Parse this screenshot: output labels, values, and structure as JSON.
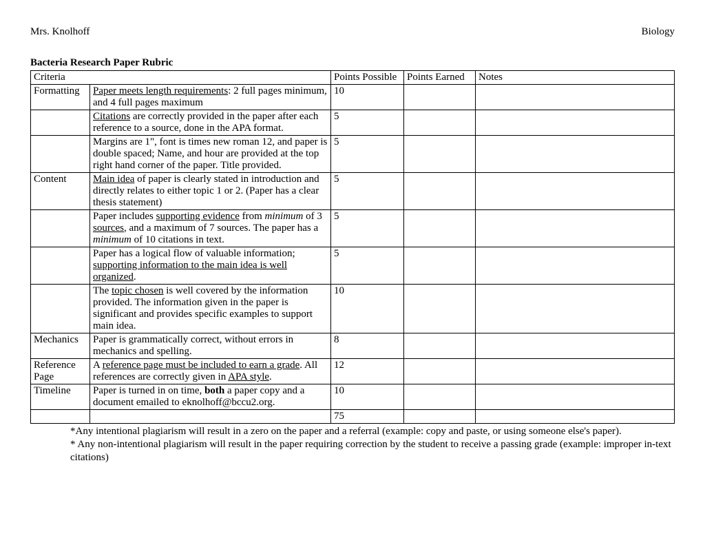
{
  "header": {
    "left": "Mrs. Knolhoff",
    "right": "Biology"
  },
  "title": "Bacteria Research Paper Rubric",
  "columns": {
    "criteria": "Criteria",
    "points_possible": "Points Possible",
    "points_earned": "Points Earned",
    "notes": "Notes"
  },
  "rows": [
    {
      "criteria": "Formatting",
      "desc_html": "<span class='u'>Paper meets length requirements</span>: 2 full pages minimum, and 4 full pages maximum",
      "points": "10"
    },
    {
      "criteria": "",
      "desc_html": "<span class='u'>Citations</span> are correctly provided in the paper after each reference to a source, done in the APA format.",
      "points": "5"
    },
    {
      "criteria": "",
      "desc_html": "Margins are 1\", font is times new roman 12, and paper is double spaced; Name, and hour are provided at the top right hand corner of the paper. Title provided.",
      "points": "5"
    },
    {
      "criteria": "Content",
      "desc_html": "<span class='u'>Main idea</span> of paper is clearly stated in introduction and directly relates to either topic 1 or 2.  (Paper has a clear thesis statement)",
      "points": "5"
    },
    {
      "criteria": "",
      "desc_html": "Paper includes <span class='u'>supporting evidence</span> from <span class='i'>minimum</span> of 3 <span class='u'>sources</span>, and a maximum of 7 sources.  The paper has a <span class='i'>minimum</span> of 10 citations in text.",
      "points": "5"
    },
    {
      "criteria": "",
      "desc_html": "Paper has a logical flow of valuable information; <span class='u'>supporting information to the main idea is well organized</span>.",
      "points": "5"
    },
    {
      "criteria": "",
      "desc_html": "The <span class='u'>topic chosen</span> is well covered by the information provided.  The information given in the paper is significant and provides specific examples to support main idea.",
      "points": "10"
    },
    {
      "criteria": "Mechanics",
      "desc_html": "Paper is grammatically correct, without errors in mechanics and spelling.",
      "points": "8"
    },
    {
      "criteria": "Reference Page",
      "desc_html": "A <span class='u'>reference page must be included to earn a grade</span>. All references are correctly given in <span class='u'>APA style</span>.",
      "points": "12"
    },
    {
      "criteria": "Timeline",
      "desc_html": "Paper is turned in on time, <span class='bold'>both</span> a paper copy and a document emailed to eknolhoff@bccu2.org.",
      "points": "10"
    }
  ],
  "total": "75",
  "footnotes": {
    "line1": "*Any intentional plagiarism will result in a zero on the paper and a referral (example: copy and paste, or using someone else's paper).",
    "line2": "* Any non-intentional plagiarism will result in the paper requiring correction by the student to receive a passing grade (example: improper in-text citations)"
  },
  "style": {
    "font_family": "Times New Roman",
    "font_size_pt": 12,
    "border_color": "#000000",
    "background_color": "#ffffff",
    "text_color": "#000000"
  }
}
